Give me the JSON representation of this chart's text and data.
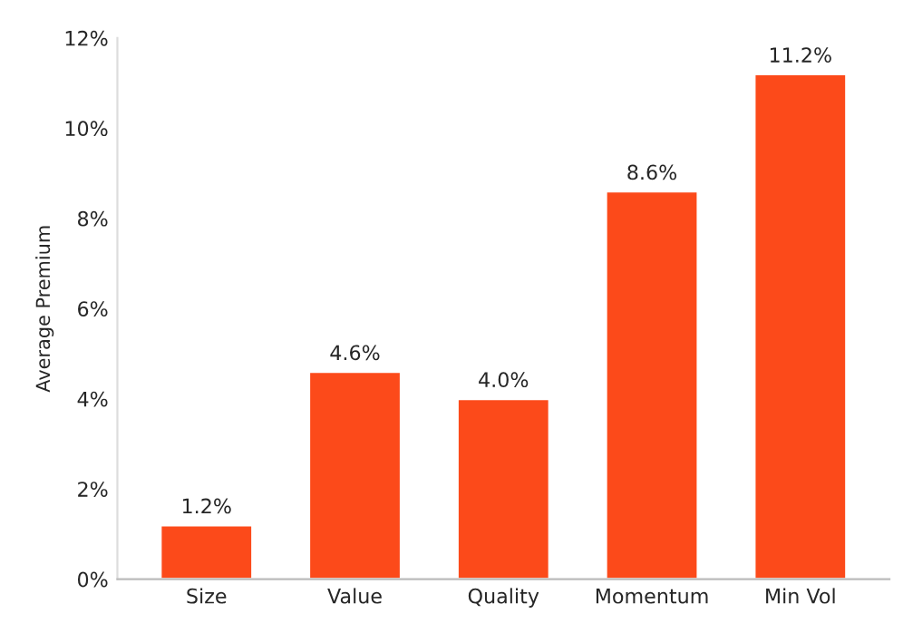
{
  "chart_data": {
    "type": "bar",
    "ylabel": "Average Premium",
    "categories": [
      "Size",
      "Value",
      "Quality",
      "Momentum",
      "Min Vol"
    ],
    "values": [
      1.2,
      4.6,
      4.0,
      8.6,
      11.2
    ],
    "value_labels": [
      "1.2%",
      "4.6%",
      "4.0%",
      "8.6%",
      "11.2%"
    ],
    "color": "#fc4a1a",
    "ylim": [
      0,
      12
    ],
    "yticks": [
      {
        "value": 0,
        "label": "0%"
      },
      {
        "value": 2,
        "label": "2%"
      },
      {
        "value": 4,
        "label": "4%"
      },
      {
        "value": 6,
        "label": "6%"
      },
      {
        "value": 8,
        "label": "8%"
      },
      {
        "value": 10,
        "label": "10%"
      },
      {
        "value": 12,
        "label": "12%"
      }
    ],
    "grid": false
  }
}
